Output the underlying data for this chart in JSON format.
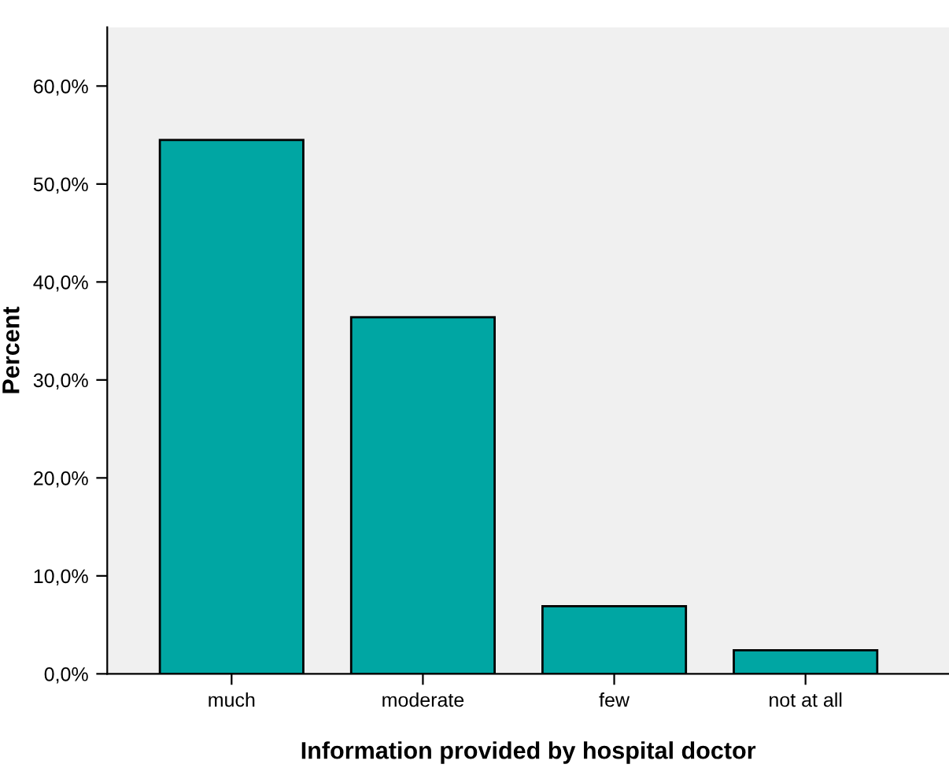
{
  "chart_data": {
    "type": "bar",
    "xlabel": "Information provided by hospital doctor",
    "ylabel": "Percent",
    "categories": [
      "much",
      "moderate",
      "few",
      "not at all"
    ],
    "values": [
      54.5,
      36.4,
      6.9,
      2.4
    ],
    "color": "#00a6a3",
    "ylim": [
      0,
      66
    ],
    "yticks": [
      {
        "value": 0,
        "label": "0,0%"
      },
      {
        "value": 10,
        "label": "10,0%"
      },
      {
        "value": 20,
        "label": "20,0%"
      },
      {
        "value": 30,
        "label": "30,0%"
      },
      {
        "value": 40,
        "label": "40,0%"
      },
      {
        "value": 50,
        "label": "50,0%"
      },
      {
        "value": 60,
        "label": "60,0%"
      }
    ],
    "grid": false
  }
}
